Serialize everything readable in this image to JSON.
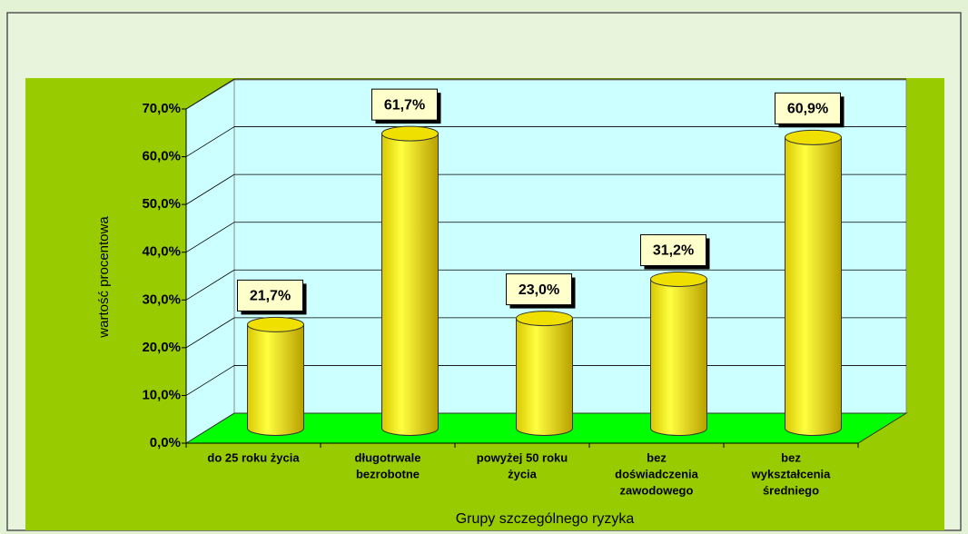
{
  "chart_data": {
    "type": "bar",
    "categories": [
      [
        "do 25 roku życia"
      ],
      [
        "długotrwale",
        "bezrobotne"
      ],
      [
        "powyżej 50 roku",
        "życia"
      ],
      [
        "bez",
        "doświadczenia",
        "zawodowego"
      ],
      [
        "bez",
        "wykształcenia",
        "średniego"
      ]
    ],
    "values": [
      21.7,
      61.7,
      23.0,
      31.2,
      60.9
    ],
    "value_labels": [
      "21,7%",
      "61,7%",
      "23,0%",
      "31,2%",
      "60,9%"
    ],
    "color": "#ffff00",
    "ylim": [
      0,
      70
    ],
    "yticks": [
      {
        "value": 0,
        "label": "0,0%"
      },
      {
        "value": 10,
        "label": "10,0%"
      },
      {
        "value": 20,
        "label": "20,0%"
      },
      {
        "value": 30,
        "label": "30,0%"
      },
      {
        "value": 40,
        "label": "40,0%"
      },
      {
        "value": 50,
        "label": "50,0%"
      },
      {
        "value": 60,
        "label": "60,0%"
      },
      {
        "value": 70,
        "label": "70,0%"
      }
    ],
    "ylabel": "wartość procentowa",
    "xlabel": "Grupy szczególnego ryzyka",
    "grid": true
  }
}
